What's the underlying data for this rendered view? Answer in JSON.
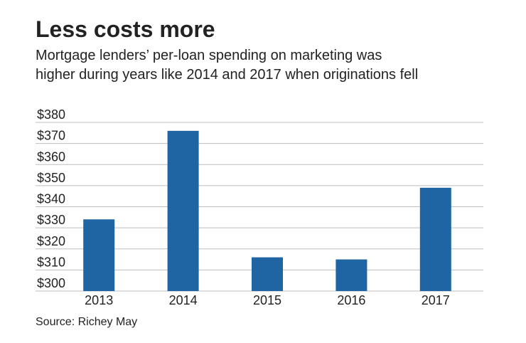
{
  "chart_data": {
    "type": "bar",
    "title": "Less costs more",
    "subtitle": [
      "Mortgage lenders’ per-loan spending on marketing was",
      "higher during years like 2014 and 2017 when originations fell"
    ],
    "categories": [
      "2013",
      "2014",
      "2015",
      "2016",
      "2017"
    ],
    "values": [
      334,
      376,
      316,
      315,
      349
    ],
    "color": "#1f64a3",
    "ylim": [
      300,
      380
    ],
    "yticks": [
      {
        "value": 300,
        "label": "$300"
      },
      {
        "value": 310,
        "label": "$310"
      },
      {
        "value": 320,
        "label": "$320"
      },
      {
        "value": 330,
        "label": "$330"
      },
      {
        "value": 340,
        "label": "$340"
      },
      {
        "value": 350,
        "label": "$350"
      },
      {
        "value": 360,
        "label": "$360"
      },
      {
        "value": 370,
        "label": "$370"
      },
      {
        "value": 380,
        "label": "$380"
      }
    ],
    "grid": true,
    "source": "Source: Richey May"
  }
}
